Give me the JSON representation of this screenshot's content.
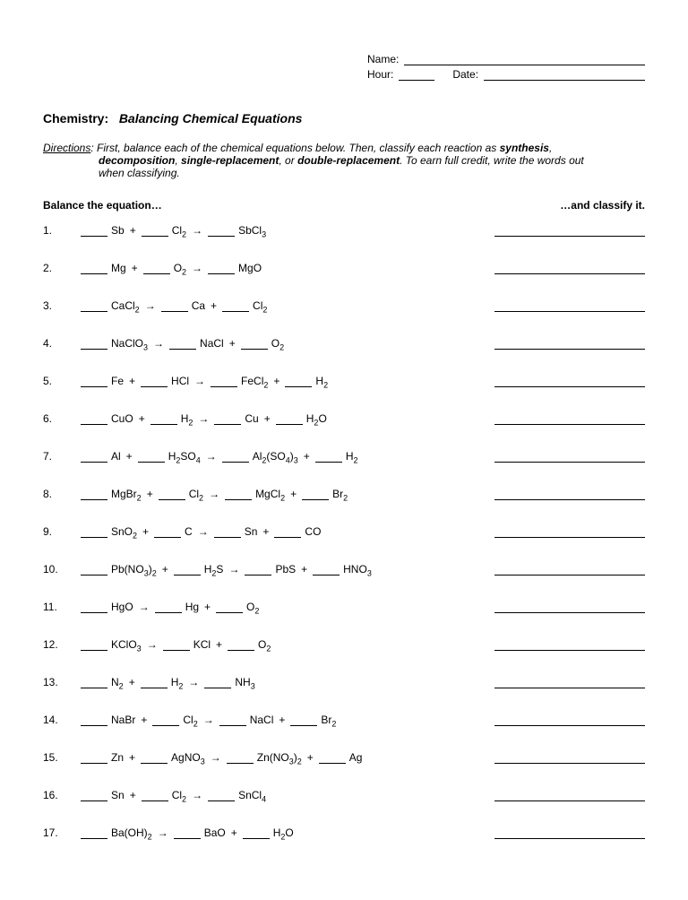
{
  "header": {
    "name_label": "Name:",
    "hour_label": "Hour:",
    "date_label": "Date:"
  },
  "title": {
    "subject": "Chemistry:",
    "topic": "Balancing Chemical Equations"
  },
  "directions": {
    "label": "Directions",
    "line1_a": ":  First, balance each of the chemical equations below.  Then, classify each reaction as ",
    "syn": "synthesis",
    "line1_b": ",",
    "decomp": "decomposition",
    "line2_a": ", ",
    "single": "single-replacement",
    "line2_b": ", or ",
    "double": "double-replacement",
    "line2_c": ".  To earn full credit, write the words out",
    "line3": "when classifying."
  },
  "section": {
    "left": "Balance the equation…",
    "right": "…and classify it."
  },
  "arrow": "→",
  "plus": "+",
  "problems": [
    {
      "n": "1.",
      "t": [
        {
          "b": true
        },
        {
          "x": "Sb"
        },
        {
          "p": true
        },
        {
          "b": true
        },
        {
          "x": "Cl",
          "s": "2"
        },
        {
          "a": true
        },
        {
          "b": true
        },
        {
          "x": "SbCl",
          "s": "3"
        }
      ]
    },
    {
      "n": "2.",
      "t": [
        {
          "b": true
        },
        {
          "x": "Mg"
        },
        {
          "p": true
        },
        {
          "b": true
        },
        {
          "x": "O",
          "s": "2"
        },
        {
          "a": true
        },
        {
          "b": true
        },
        {
          "x": "MgO"
        }
      ]
    },
    {
      "n": "3.",
      "t": [
        {
          "b": true
        },
        {
          "x": "CaCl",
          "s": "2"
        },
        {
          "a": true
        },
        {
          "b": true
        },
        {
          "x": "Ca"
        },
        {
          "p": true
        },
        {
          "b": true
        },
        {
          "x": "Cl",
          "s": "2"
        }
      ]
    },
    {
      "n": "4.",
      "t": [
        {
          "b": true
        },
        {
          "x": "NaClO",
          "s": "3"
        },
        {
          "a": true
        },
        {
          "b": true
        },
        {
          "x": "NaCl"
        },
        {
          "p": true
        },
        {
          "b": true
        },
        {
          "x": "O",
          "s": "2"
        }
      ]
    },
    {
      "n": "5.",
      "t": [
        {
          "b": true
        },
        {
          "x": "Fe"
        },
        {
          "p": true
        },
        {
          "b": true
        },
        {
          "x": "HCl"
        },
        {
          "a": true
        },
        {
          "b": true
        },
        {
          "x": "FeCl",
          "s": "2"
        },
        {
          "p": true
        },
        {
          "b": true
        },
        {
          "x": "H",
          "s": "2"
        }
      ]
    },
    {
      "n": "6.",
      "t": [
        {
          "b": true
        },
        {
          "x": "CuO"
        },
        {
          "p": true
        },
        {
          "b": true
        },
        {
          "x": "H",
          "s": "2"
        },
        {
          "a": true
        },
        {
          "b": true
        },
        {
          "x": "Cu"
        },
        {
          "p": true
        },
        {
          "b": true
        },
        {
          "x": "H",
          "s": "2",
          "x2": "O"
        }
      ]
    },
    {
      "n": "7.",
      "t": [
        {
          "b": true
        },
        {
          "x": "Al"
        },
        {
          "p": true
        },
        {
          "b": true
        },
        {
          "x": "H",
          "s": "2",
          "x2": "SO",
          "s2": "4"
        },
        {
          "a": true
        },
        {
          "b": true
        },
        {
          "x": "Al",
          "s": "2",
          "x2": "(SO",
          "s2": "4",
          "x3": ")",
          "s3": "3"
        },
        {
          "p": true
        },
        {
          "b": true
        },
        {
          "x": "H",
          "s": "2"
        }
      ]
    },
    {
      "n": "8.",
      "t": [
        {
          "b": true
        },
        {
          "x": "MgBr",
          "s": "2"
        },
        {
          "p": true
        },
        {
          "b": true
        },
        {
          "x": "Cl",
          "s": "2"
        },
        {
          "a": true
        },
        {
          "b": true
        },
        {
          "x": "MgCl",
          "s": "2"
        },
        {
          "p": true
        },
        {
          "b": true
        },
        {
          "x": "Br",
          "s": "2"
        }
      ]
    },
    {
      "n": "9.",
      "t": [
        {
          "b": true
        },
        {
          "x": "SnO",
          "s": "2"
        },
        {
          "p": true
        },
        {
          "b": true
        },
        {
          "x": "C"
        },
        {
          "a": true
        },
        {
          "b": true
        },
        {
          "x": "Sn"
        },
        {
          "p": true
        },
        {
          "b": true
        },
        {
          "x": "CO"
        }
      ]
    },
    {
      "n": "10.",
      "t": [
        {
          "b": true
        },
        {
          "x": "Pb(NO",
          "s": "3",
          "x2": ")",
          "s2": "2"
        },
        {
          "p": true
        },
        {
          "b": true
        },
        {
          "x": "H",
          "s": "2",
          "x2": "S"
        },
        {
          "a": true
        },
        {
          "b": true
        },
        {
          "x": "PbS"
        },
        {
          "p": true
        },
        {
          "b": true
        },
        {
          "x": "HNO",
          "s": "3"
        }
      ]
    },
    {
      "n": "11.",
      "t": [
        {
          "b": true
        },
        {
          "x": "HgO"
        },
        {
          "a": true
        },
        {
          "b": true
        },
        {
          "x": "Hg"
        },
        {
          "p": true
        },
        {
          "b": true
        },
        {
          "x": "O",
          "s": "2"
        }
      ]
    },
    {
      "n": "12.",
      "t": [
        {
          "b": true
        },
        {
          "x": "KClO",
          "s": "3"
        },
        {
          "a": true
        },
        {
          "b": true
        },
        {
          "x": "KCl"
        },
        {
          "p": true
        },
        {
          "b": true
        },
        {
          "x": "O",
          "s": "2"
        }
      ]
    },
    {
      "n": "13.",
      "t": [
        {
          "b": true
        },
        {
          "x": "N",
          "s": "2"
        },
        {
          "p": true
        },
        {
          "b": true
        },
        {
          "x": "H",
          "s": "2"
        },
        {
          "a": true
        },
        {
          "b": true
        },
        {
          "x": "NH",
          "s": "3"
        }
      ]
    },
    {
      "n": "14.",
      "t": [
        {
          "b": true
        },
        {
          "x": "NaBr"
        },
        {
          "p": true
        },
        {
          "b": true
        },
        {
          "x": "Cl",
          "s": "2"
        },
        {
          "a": true
        },
        {
          "b": true
        },
        {
          "x": "NaCl"
        },
        {
          "p": true
        },
        {
          "b": true
        },
        {
          "x": "Br",
          "s": "2"
        }
      ]
    },
    {
      "n": "15.",
      "t": [
        {
          "b": true
        },
        {
          "x": "Zn"
        },
        {
          "p": true
        },
        {
          "b": true
        },
        {
          "x": "AgNO",
          "s": "3"
        },
        {
          "a": true
        },
        {
          "b": true
        },
        {
          "x": "Zn(NO",
          "s": "3",
          "x2": ")",
          "s2": "2"
        },
        {
          "p": true
        },
        {
          "b": true
        },
        {
          "x": "Ag"
        }
      ]
    },
    {
      "n": "16.",
      "t": [
        {
          "b": true
        },
        {
          "x": "Sn"
        },
        {
          "p": true
        },
        {
          "b": true
        },
        {
          "x": "Cl",
          "s": "2"
        },
        {
          "a": true
        },
        {
          "b": true
        },
        {
          "x": "SnCl",
          "s": "4"
        }
      ]
    },
    {
      "n": "17.",
      "t": [
        {
          "b": true
        },
        {
          "x": "Ba(OH)",
          "s": "2"
        },
        {
          "a": true
        },
        {
          "b": true
        },
        {
          "x": "BaO"
        },
        {
          "p": true
        },
        {
          "b": true
        },
        {
          "x": "H",
          "s": "2",
          "x2": "O"
        }
      ]
    }
  ]
}
